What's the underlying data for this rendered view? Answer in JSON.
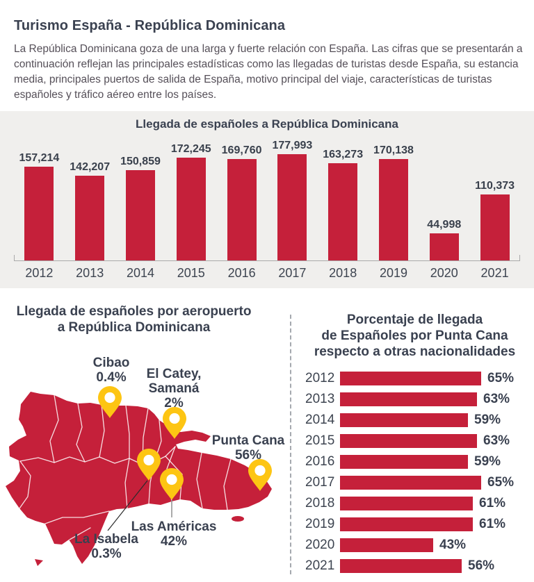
{
  "header": {
    "title": "Turismo España - República Dominicana",
    "intro": "La República Dominicana goza de una larga y fuerte relación con España. Las cifras que se presentarán a continuación reflejan las principales estadísticas como las llegadas de turistas desde España, su estancia media, principales puertos de salida de España, motivo principal del viaje, características de turistas españoles y tráfico aéreo entre los países."
  },
  "colors": {
    "red": "#c5203a",
    "yellow": "#fdc513",
    "dark": "#3a4150",
    "band_bg": "#f0efed"
  },
  "chart_data": [
    {
      "type": "bar",
      "orientation": "vertical",
      "title": "Llegada de españoles a República Dominicana",
      "categories": [
        "2012",
        "2013",
        "2014",
        "2015",
        "2016",
        "2017",
        "2018",
        "2019",
        "2020",
        "2021"
      ],
      "values": [
        157214,
        142207,
        150859,
        172245,
        169760,
        177993,
        163273,
        170138,
        44998,
        110373
      ],
      "value_labels": [
        "157,214",
        "142,207",
        "150,859",
        "172,245",
        "169,760",
        "177,993",
        "163,273",
        "170,138",
        "44,998",
        "110,373"
      ],
      "ylim": [
        0,
        180000
      ],
      "grid": false,
      "legend": "none"
    },
    {
      "type": "bar",
      "orientation": "horizontal",
      "title": "Porcentaje de llegada de Españoles por Punta Cana respecto a otras nacionalidades",
      "title_lines": [
        "Porcentaje de llegada",
        "de Españoles por Punta Cana",
        "respecto a otras nacionalidades"
      ],
      "categories": [
        "2012",
        "2013",
        "2014",
        "2015",
        "2016",
        "2017",
        "2018",
        "2019",
        "2020",
        "2021"
      ],
      "values": [
        65,
        63,
        59,
        63,
        59,
        65,
        61,
        61,
        43,
        56
      ],
      "value_labels": [
        "65%",
        "63%",
        "59%",
        "63%",
        "59%",
        "65%",
        "61%",
        "61%",
        "43%",
        "56%"
      ],
      "xlim": [
        0,
        100
      ],
      "grid": false,
      "legend": "none"
    }
  ],
  "airports": {
    "title": "Llegada de españoles por aeropuerto\na República Dominicana",
    "markers": [
      {
        "id": "cibao",
        "name": "Cibao",
        "pct": "0.4%",
        "label": "Cibao\n0.4%"
      },
      {
        "id": "el-catey",
        "name": "El Catey, Samaná",
        "pct": "2%",
        "label": "El Catey,\nSamaná\n2%"
      },
      {
        "id": "punta-cana",
        "name": "Punta Cana",
        "pct": "56%",
        "label": "Punta Cana\n56%"
      },
      {
        "id": "las-americas",
        "name": "Las Américas",
        "pct": "42%",
        "label": "Las Américas\n42%"
      },
      {
        "id": "la-isabela",
        "name": "La Isabela",
        "pct": "0.3%",
        "label": "La Isabela\n0.3%"
      }
    ]
  }
}
